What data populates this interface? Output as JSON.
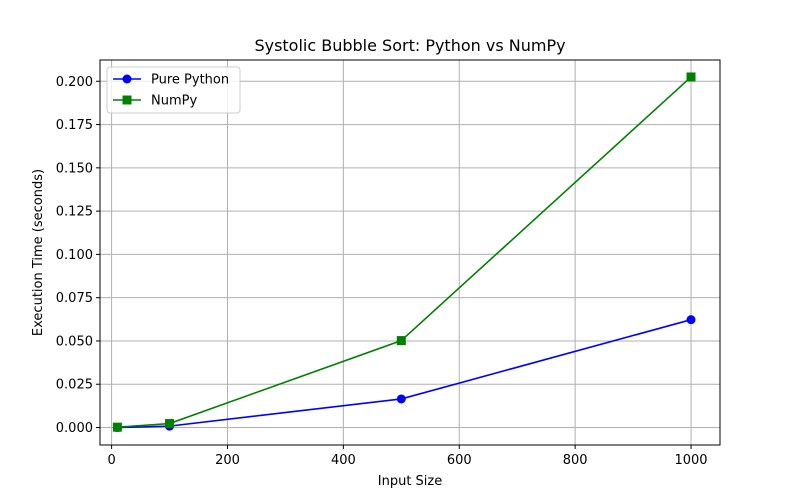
{
  "chart_data": {
    "type": "line",
    "title": "Systolic Bubble Sort: Python vs NumPy",
    "xlabel": "Input Size",
    "ylabel": "Execution Time (seconds)",
    "xlim": [
      -20,
      1050
    ],
    "ylim": [
      -0.0101,
      0.2123
    ],
    "xticks": [
      0,
      200,
      400,
      600,
      800,
      1000
    ],
    "xtick_labels": [
      "0",
      "200",
      "400",
      "600",
      "800",
      "1000"
    ],
    "yticks": [
      0.0,
      0.025,
      0.05,
      0.075,
      0.1,
      0.125,
      0.15,
      0.175,
      0.2
    ],
    "ytick_labels": [
      "0.000",
      "0.025",
      "0.050",
      "0.075",
      "0.100",
      "0.125",
      "0.150",
      "0.175",
      "0.200"
    ],
    "grid": true,
    "legend_position": "upper-left",
    "series": [
      {
        "name": "Pure Python",
        "color": "#0000ff",
        "marker": "circle",
        "x": [
          10,
          100,
          500,
          1000
        ],
        "y": [
          0.0,
          0.0008,
          0.0165,
          0.0623
        ]
      },
      {
        "name": "NumPy",
        "color": "#008000",
        "marker": "square",
        "x": [
          10,
          100,
          500,
          1000
        ],
        "y": [
          0.0002,
          0.0023,
          0.0502,
          0.2025
        ]
      }
    ]
  }
}
